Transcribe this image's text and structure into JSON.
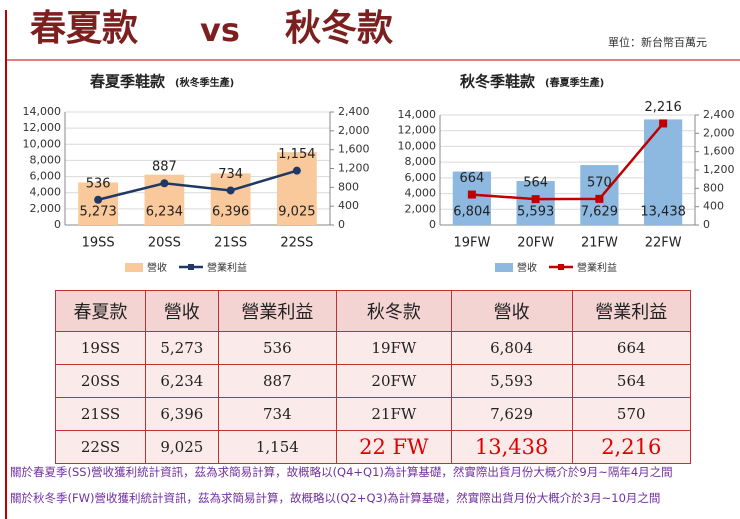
{
  "header": {
    "title_left": "春夏款",
    "vs": "vs",
    "title_right": "秋冬款",
    "unit": "單位：新台幣百萬元"
  },
  "chart_data": [
    {
      "type": "bar-line",
      "title": "春夏季鞋款",
      "subtitle": "(秋冬季生產)",
      "categories": [
        "19SS",
        "20SS",
        "21SS",
        "22SS"
      ],
      "series": [
        {
          "name": "營收",
          "color": "#f9c89b",
          "mark": "bar",
          "values": [
            5273,
            6234,
            6396,
            9025
          ],
          "value_labels": [
            "5,273",
            "6,234",
            "6,396",
            "9,025"
          ]
        },
        {
          "name": "營業利益",
          "color": "#1f3864",
          "mark": "line",
          "axis": "y2",
          "values": [
            536,
            887,
            734,
            1154
          ],
          "value_labels": [
            "536",
            "887",
            "734",
            "1,154"
          ]
        }
      ],
      "ylim": [
        0,
        14000
      ],
      "yticks": [
        0,
        {
          "value": 2000,
          "label": "2,000"
        },
        {
          "value": 4000,
          "label": "4,000"
        },
        {
          "value": 6000,
          "label": "6,000"
        },
        {
          "value": 8000,
          "label": "8,000"
        },
        {
          "value": 10000,
          "label": "10,000"
        },
        {
          "value": 12000,
          "label": "12,000"
        },
        {
          "value": 14000,
          "label": "14,000"
        }
      ],
      "y2lim": [
        0,
        2400
      ],
      "y2ticks": [
        0,
        400,
        800,
        {
          "value": 1200,
          "label": "1,200"
        },
        {
          "value": 1600,
          "label": "1,600"
        },
        {
          "value": 2000,
          "label": "2,000"
        },
        {
          "value": 2400,
          "label": "2,400"
        }
      ],
      "grid": true
    },
    {
      "type": "bar-line",
      "title": "秋冬季鞋款",
      "subtitle": "(春夏季生產)",
      "categories": [
        "19FW",
        "20FW",
        "21FW",
        "22FW"
      ],
      "series": [
        {
          "name": "營收",
          "color": "#8db8e0",
          "mark": "bar",
          "values": [
            6804,
            5593,
            7629,
            13438
          ],
          "value_labels": [
            "6,804",
            "5,593",
            "7,629",
            "13,438"
          ]
        },
        {
          "name": "營業利益",
          "color": "#c00000",
          "mark": "line",
          "axis": "y2",
          "values": [
            664,
            564,
            570,
            2216
          ],
          "value_labels": [
            "664",
            "564",
            "570",
            "2,216"
          ]
        }
      ],
      "ylim": [
        0,
        14000
      ],
      "yticks": [
        0,
        {
          "value": 2000,
          "label": "2,000"
        },
        {
          "value": 4000,
          "label": "4,000"
        },
        {
          "value": 6000,
          "label": "6,000"
        },
        {
          "value": 8000,
          "label": "8,000"
        },
        {
          "value": 10000,
          "label": "10,000"
        },
        {
          "value": 12000,
          "label": "12,000"
        },
        {
          "value": 14000,
          "label": "14,000"
        }
      ],
      "y2lim": [
        0,
        2400
      ],
      "y2ticks": [
        0,
        400,
        800,
        {
          "value": 1200,
          "label": "1,200"
        },
        {
          "value": 1600,
          "label": "1,600"
        },
        {
          "value": 2000,
          "label": "2,000"
        },
        {
          "value": 2400,
          "label": "2,400"
        }
      ],
      "grid": true
    }
  ],
  "table": {
    "header": [
      "春夏款",
      "營收",
      "營業利益",
      "秋冬款",
      "營收",
      "營業利益"
    ],
    "rows": [
      [
        "19SS",
        "5,273",
        "536",
        "19FW",
        "6,804",
        "664"
      ],
      [
        "20SS",
        "6,234",
        "887",
        "20FW",
        "5,593",
        "564"
      ],
      [
        "21SS",
        "6,396",
        "734",
        "21FW",
        "7,629",
        "570"
      ],
      [
        "22SS",
        "9,025",
        "1,154",
        "22 FW",
        "13,438",
        "2,216"
      ]
    ]
  },
  "notes": [
    "關於春夏季(SS)營收獲利統計資訊，茲為求簡易計算，故概略以(Q4+Q1)為計算基礎，然實際出貨月份大概介於9月~隔年4月之間",
    "關於秋冬季(FW)營收獲利統計資訊，茲為求簡易計算，故概略以(Q2+Q3)為計算基礎，然實際出貨月份大概介於3月~10月之間"
  ]
}
